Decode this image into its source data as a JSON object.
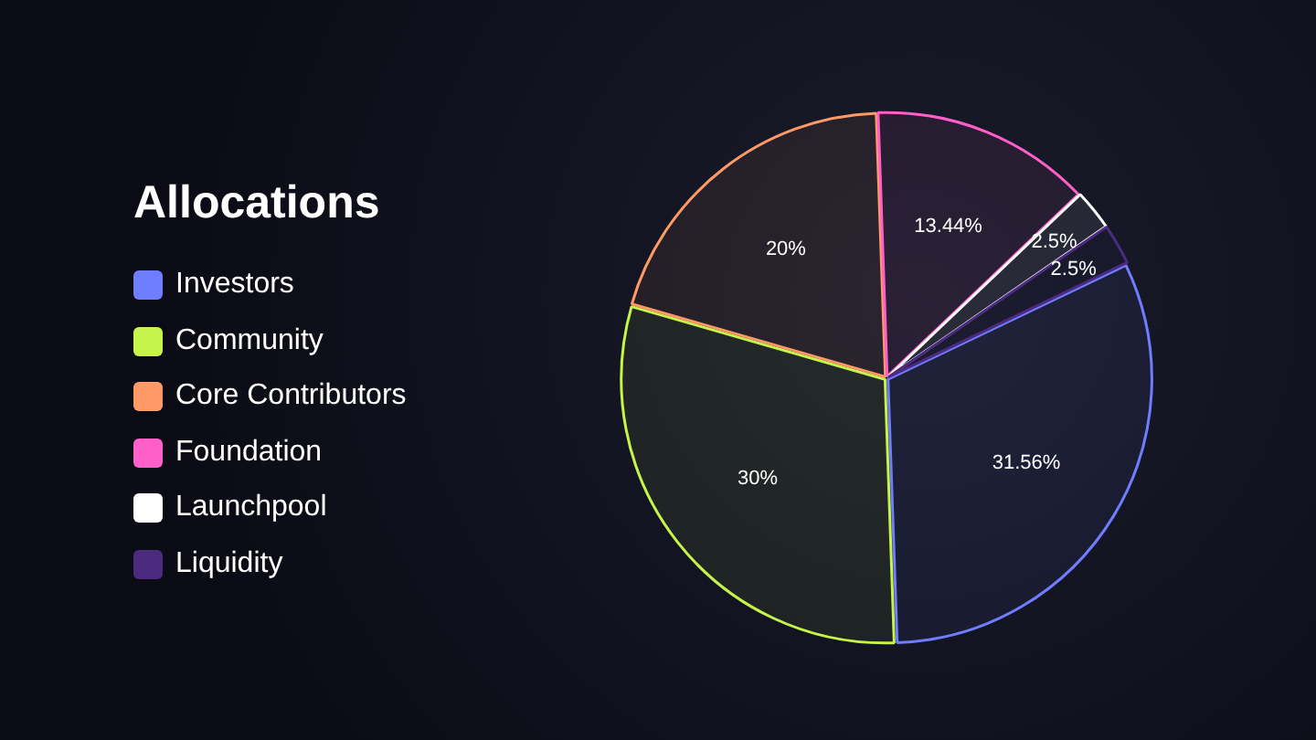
{
  "chart_data": {
    "type": "pie",
    "title": "Allocations",
    "categories": [
      "Investors",
      "Community",
      "Core Contributors",
      "Foundation",
      "Launchpool",
      "Liquidity"
    ],
    "values": [
      31.56,
      30,
      20,
      13.44,
      2.5,
      2.5
    ],
    "value_labels": [
      "31.56%",
      "30%",
      "20%",
      "13.44%",
      "2.5%",
      "2.5%"
    ],
    "colors": [
      "#6f7dff",
      "#c6f44a",
      "#ff9a66",
      "#ff5fc8",
      "#ffffff",
      "#4b2a80"
    ],
    "legend": "left"
  }
}
